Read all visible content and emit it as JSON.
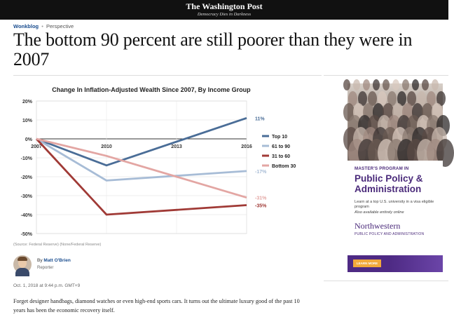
{
  "masthead": {
    "title": "The Washington Post",
    "tagline": "Democracy Dies in Darkness"
  },
  "kicker": {
    "section": "Wonkblog",
    "separator": "•",
    "label": "Perspective"
  },
  "headline": "The bottom 90 percent are still poorer than they were in 2007",
  "chart_data": {
    "type": "line",
    "title": "Change In Inflation-Adjusted Wealth Since 2007, By Income Group",
    "x": [
      "2007",
      "2010",
      "2013",
      "2016"
    ],
    "y_ticks": [
      "20%",
      "10%",
      "0%",
      "-10%",
      "-20%",
      "-30%",
      "-40%",
      "-50%"
    ],
    "ylim": [
      -50,
      20
    ],
    "grid": true,
    "legend_position": "right",
    "series": [
      {
        "name": "Top 10",
        "values": [
          0,
          -14,
          null,
          11
        ],
        "end_label": "11%",
        "color": "#4a6d97"
      },
      {
        "name": "61 to 90",
        "values": [
          0,
          -22,
          null,
          -17
        ],
        "end_label": "-17%",
        "color": "#a7bcd6"
      },
      {
        "name": "31 to 60",
        "values": [
          0,
          -40,
          null,
          -35
        ],
        "end_label": "-35%",
        "color": "#a03a36"
      },
      {
        "name": "Bottom 30",
        "values": [
          0,
          -9,
          null,
          -31
        ],
        "end_label": "-31%",
        "color": "#e3a6a3"
      }
    ]
  },
  "source": "(Source: Federal Reserve) (None/Federal Reserve)",
  "author": {
    "by": "By",
    "name": "Matt O'Brien",
    "role": "Reporter"
  },
  "dateline": "Oct. 1, 2018 at 9:44 p.m. GMT+9",
  "body": "Forget designer handbags, diamond watches or even high-end sports cars. It turns out the ultimate luxury good of the past 10 years has been the economic recovery itself.",
  "ad": {
    "kicker": "MASTER'S PROGRAM IN",
    "title": "Public Policy & Administration",
    "sub": "Learn at a top U.S. university in a visa eligible program",
    "sub2": "Also available entirely online",
    "brand": "Northwestern",
    "brand_sub": "PUBLIC POLICY AND ADMINISTRATION",
    "button": "LEARN MORE"
  }
}
